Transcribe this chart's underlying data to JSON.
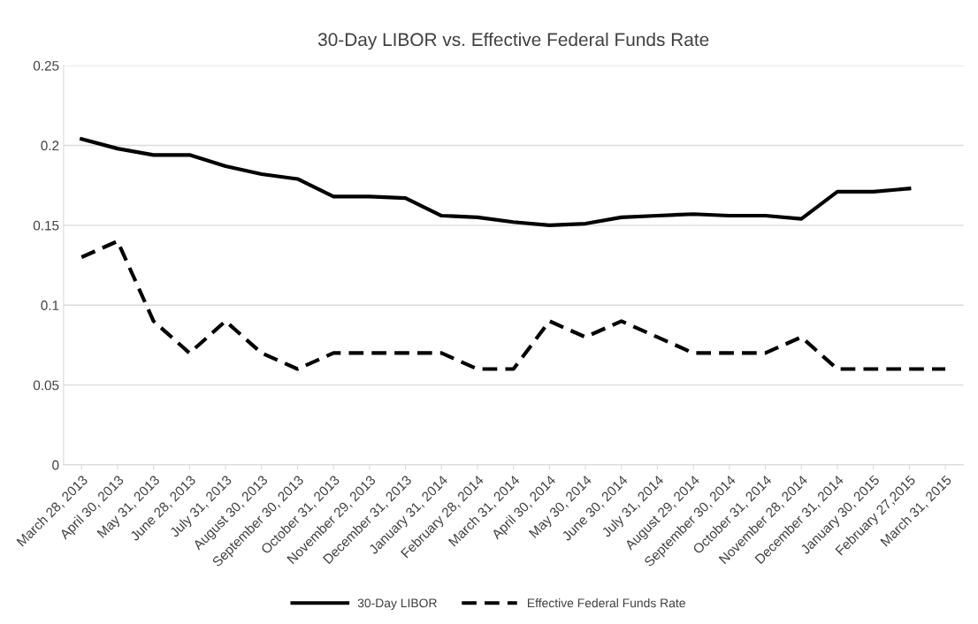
{
  "chart_data": {
    "type": "line",
    "title": "30-Day LIBOR vs. Effective Federal Funds Rate",
    "categories": [
      "March 28, 2013",
      "April 30, 2013",
      "May 31, 2013",
      "June 28, 2013",
      "July 31, 2013",
      "August 30, 2013",
      "September 30, 2013",
      "October 31, 2013",
      "November 29, 2013",
      "December 31, 2013",
      "January 31, 2014",
      "February 28, 2014",
      "March 31, 2014",
      "April 30, 2014",
      "May 30, 2014",
      "June 30, 2014",
      "July 31, 2014",
      "August 29, 2014",
      "September 30, 2014",
      "October 31, 2014",
      "November 28, 2014",
      "December 31, 2014",
      "January 30, 2015",
      "February 27,2015",
      "March 31, 2015"
    ],
    "series": [
      {
        "name": "30-Day LIBOR",
        "color": "#000000",
        "line_style": "solid",
        "values": [
          0.204,
          0.198,
          0.194,
          0.194,
          0.187,
          0.182,
          0.179,
          0.168,
          0.168,
          0.167,
          0.156,
          0.155,
          0.152,
          0.15,
          0.151,
          0.155,
          0.156,
          0.157,
          0.156,
          0.156,
          0.154,
          0.171,
          0.171,
          0.173,
          null
        ]
      },
      {
        "name": "Effective Federal Funds Rate",
        "color": "#000000",
        "line_style": "dashed",
        "values": [
          0.13,
          0.14,
          0.09,
          0.07,
          0.09,
          0.07,
          0.06,
          0.07,
          0.07,
          0.07,
          0.07,
          0.06,
          0.06,
          0.09,
          0.08,
          0.09,
          0.08,
          0.07,
          0.07,
          0.07,
          0.08,
          0.06,
          0.06,
          0.06,
          0.06
        ]
      }
    ],
    "ylim": [
      0,
      0.25
    ],
    "yticks": [
      0,
      0.05,
      0.1,
      0.15,
      0.2,
      0.25
    ],
    "grid": "y",
    "legend": "bottom",
    "marker": "none"
  }
}
